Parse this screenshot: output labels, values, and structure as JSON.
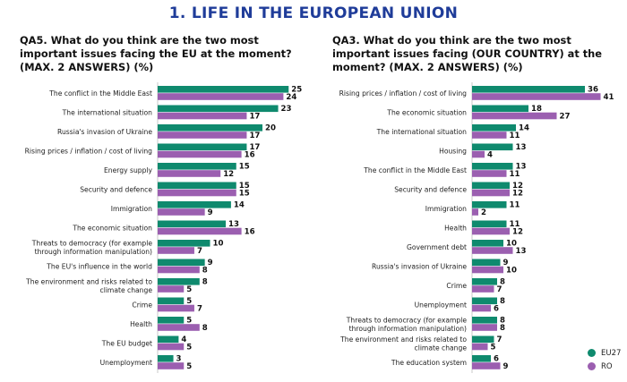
{
  "page": {
    "title": "1. LIFE IN THE EUROPEAN UNION"
  },
  "colors": {
    "eu27": "#0f8a6e",
    "ro": "#9b5fb0"
  },
  "chart_data": [
    {
      "type": "bar",
      "orientation": "horizontal",
      "title": "QA5. What do you think are the two most important issues facing the EU at the moment? (MAX. 2 ANSWERS) (%)",
      "title_lines": [
        "QA5. What do you think are the two most",
        "important issues facing the EU at the moment?",
        "(MAX. 2 ANSWERS) (%)"
      ],
      "categories": [
        [
          "The conflict in the Middle East"
        ],
        [
          "The international situation"
        ],
        [
          "Russia's invasion of Ukraine"
        ],
        [
          "Rising prices / inflation / cost of living"
        ],
        [
          "Energy supply"
        ],
        [
          "Security and defence"
        ],
        [
          "Immigration"
        ],
        [
          "The economic situation"
        ],
        [
          "Threats to democracy (for example",
          "through information manipulation)"
        ],
        [
          "The EU's influence in the world"
        ],
        [
          "The environment and risks related to",
          "climate change"
        ],
        [
          "Crime"
        ],
        [
          "Health"
        ],
        [
          "The EU budget"
        ],
        [
          "Unemployment"
        ]
      ],
      "series": [
        {
          "name": "EU27",
          "values": [
            25,
            23,
            20,
            17,
            15,
            15,
            14,
            13,
            10,
            9,
            8,
            5,
            5,
            4,
            3
          ]
        },
        {
          "name": "RO",
          "values": [
            24,
            17,
            17,
            16,
            12,
            15,
            9,
            16,
            7,
            8,
            5,
            7,
            8,
            5,
            5
          ]
        }
      ],
      "legend": {
        "position": "none"
      }
    },
    {
      "type": "bar",
      "orientation": "horizontal",
      "title": "QA3. What do you think are the two most important issues facing (OUR COUNTRY) at the moment? (MAX. 2 ANSWERS) (%)",
      "title_lines": [
        "QA3. What do you think are the two most",
        "important issues facing (OUR COUNTRY) at the",
        "moment? (MAX. 2 ANSWERS) (%)"
      ],
      "categories": [
        [
          "Rising prices / inflation / cost of living"
        ],
        [
          "The economic situation"
        ],
        [
          "The international situation"
        ],
        [
          "Housing"
        ],
        [
          "The conflict in the Middle East"
        ],
        [
          "Security and defence"
        ],
        [
          "Immigration"
        ],
        [
          "Health"
        ],
        [
          "Government debt"
        ],
        [
          "Russia's invasion of Ukraine"
        ],
        [
          "Crime"
        ],
        [
          "Unemployment"
        ],
        [
          "Threats to democracy (for example",
          "through information manipulation)"
        ],
        [
          "The environment and risks related to",
          "climate change"
        ],
        [
          "The education system"
        ]
      ],
      "series": [
        {
          "name": "EU27",
          "values": [
            36,
            18,
            14,
            13,
            13,
            12,
            11,
            11,
            10,
            9,
            8,
            8,
            8,
            7,
            6
          ]
        },
        {
          "name": "RO",
          "values": [
            41,
            27,
            11,
            4,
            11,
            12,
            2,
            12,
            13,
            10,
            7,
            6,
            8,
            5,
            9
          ]
        }
      ],
      "legend": {
        "position": "bottom-right",
        "entries": [
          "EU27",
          "RO"
        ]
      }
    }
  ]
}
